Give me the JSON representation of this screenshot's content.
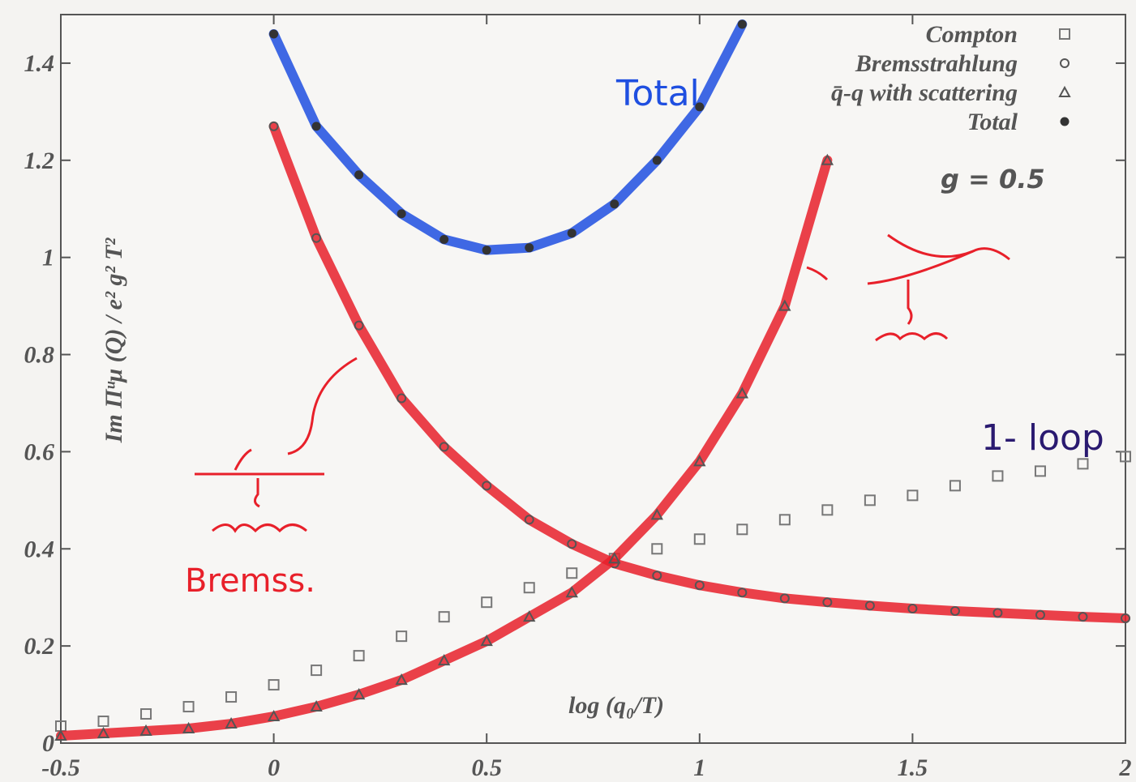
{
  "chart_data": {
    "type": "scatter",
    "x_label": "log (q₀/T)",
    "y_label": "Im Πᵘμ (Q) / e² g² T²",
    "xlim": [
      -0.5,
      2
    ],
    "ylim": [
      0,
      1.5
    ],
    "xticks": [
      -0.5,
      0,
      0.5,
      1,
      1.5,
      2
    ],
    "yticks": [
      0,
      0.2,
      0.4,
      0.6,
      0.8,
      1,
      1.2,
      1.4
    ],
    "legend": "top-right",
    "x": [
      -0.5,
      -0.4,
      -0.3,
      -0.2,
      -0.1,
      0,
      0.1,
      0.2,
      0.3,
      0.4,
      0.5,
      0.6,
      0.7,
      0.8,
      0.9,
      1,
      1.1,
      1.2,
      1.3,
      1.4,
      1.5,
      1.6,
      1.7,
      1.8,
      1.9,
      2
    ],
    "series": [
      {
        "name": "Compton",
        "marker": "square",
        "color": "#777777",
        "values": [
          0.035,
          0.045,
          0.06,
          0.075,
          0.095,
          0.12,
          0.15,
          0.18,
          0.22,
          0.26,
          0.29,
          0.32,
          0.35,
          0.38,
          0.4,
          0.42,
          0.44,
          0.46,
          0.48,
          0.5,
          0.51,
          0.53,
          0.55,
          0.56,
          0.575,
          0.59
        ]
      },
      {
        "name": "Bremsstrahlung",
        "marker": "circle",
        "color": "#555555",
        "line_color": "#e8202a",
        "values": [
          null,
          null,
          null,
          null,
          null,
          1.27,
          1.04,
          0.86,
          0.71,
          0.61,
          0.53,
          0.46,
          0.41,
          0.37,
          0.345,
          0.325,
          0.31,
          0.298,
          0.29,
          0.283,
          0.277,
          0.272,
          0.268,
          0.264,
          0.26,
          0.257
        ]
      },
      {
        "name": "q̄-q with scattering",
        "marker": "triangle",
        "color": "#555555",
        "line_color": "#e8202a",
        "values": [
          0.015,
          0.02,
          0.025,
          0.03,
          0.04,
          0.055,
          0.075,
          0.1,
          0.13,
          0.17,
          0.21,
          0.26,
          0.31,
          0.38,
          0.47,
          0.58,
          0.72,
          0.9,
          1.2,
          null,
          null,
          null,
          null,
          null,
          null,
          null
        ]
      },
      {
        "name": "Total",
        "marker": "dot",
        "color": "#333333",
        "line_color": "#1f4fe0",
        "values": [
          null,
          null,
          null,
          null,
          null,
          1.46,
          1.27,
          1.17,
          1.09,
          1.037,
          1.015,
          1.02,
          1.05,
          1.11,
          1.2,
          1.31,
          1.48,
          null,
          null,
          null,
          null,
          null,
          null,
          null,
          null,
          null
        ]
      }
    ],
    "annotations": [
      "g = 0.5",
      "Total",
      "1- loop",
      "Bremss."
    ]
  }
}
